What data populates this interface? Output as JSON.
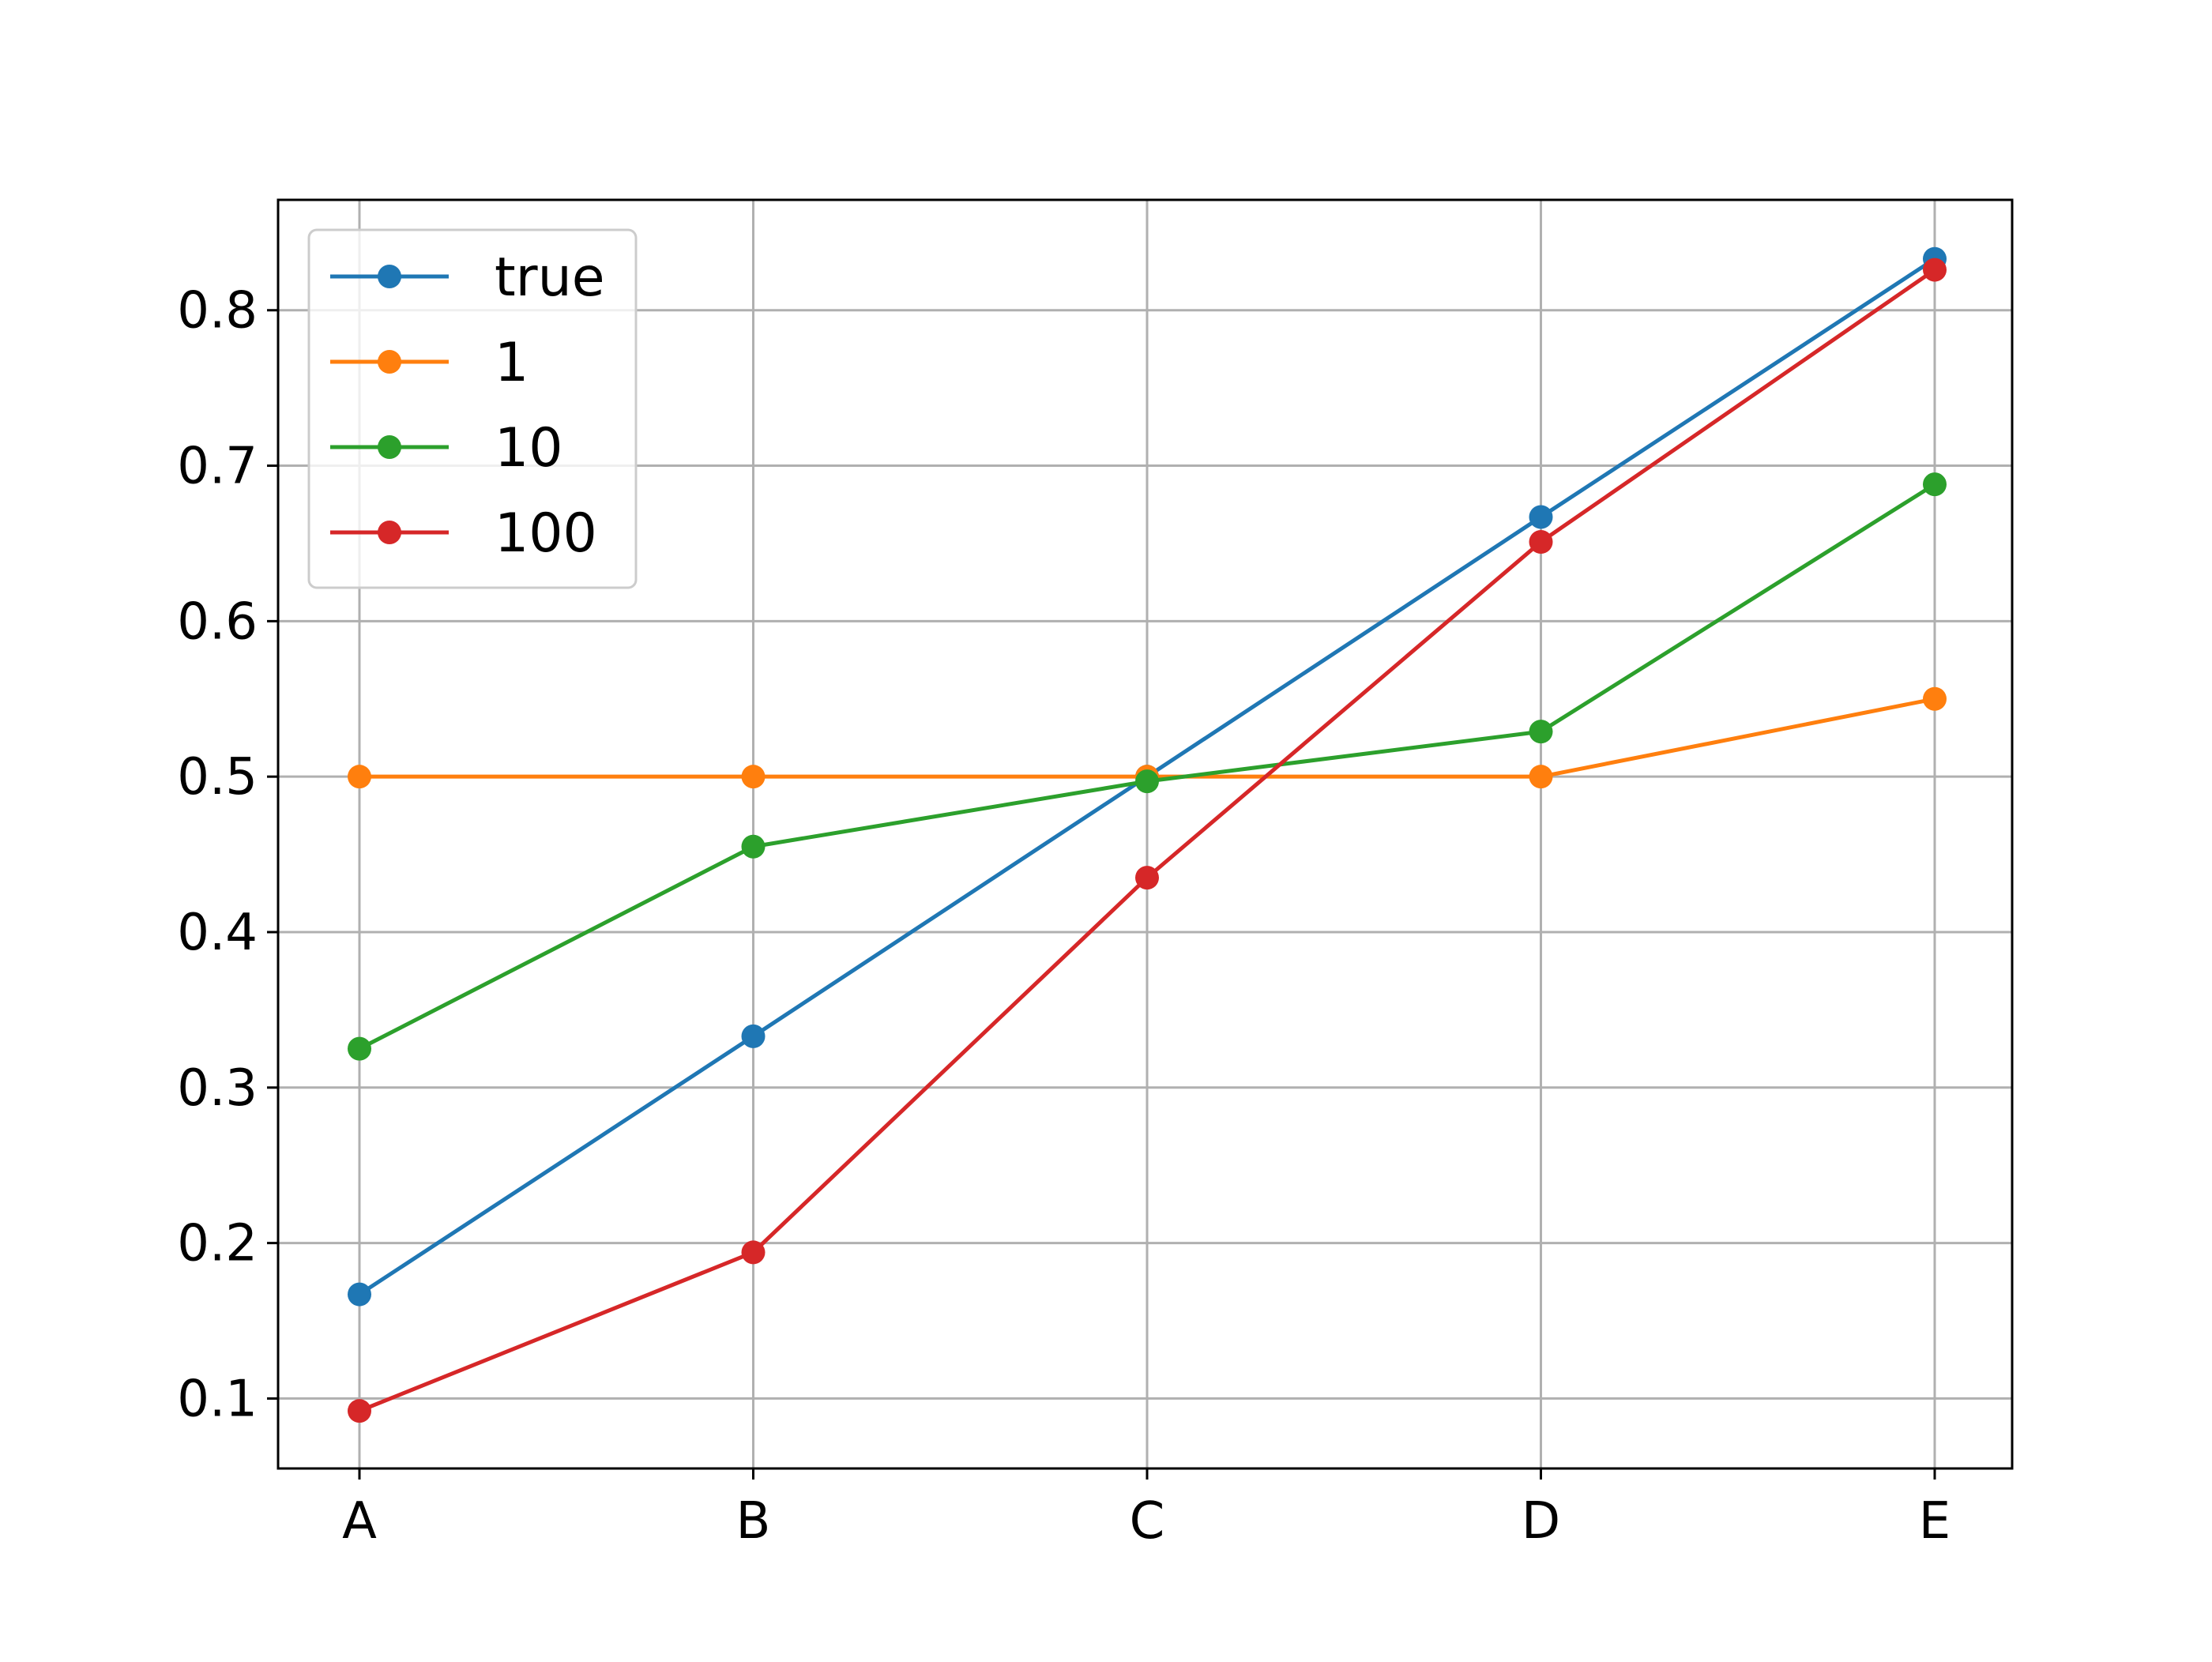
{
  "chart_data": {
    "type": "line",
    "categories": [
      "A",
      "B",
      "C",
      "D",
      "E"
    ],
    "series": [
      {
        "name": "true",
        "values": [
          0.167,
          0.333,
          0.5,
          0.667,
          0.833
        ],
        "color": "#1f77b4"
      },
      {
        "name": "1",
        "values": [
          0.5,
          0.5,
          0.5,
          0.5,
          0.55
        ],
        "color": "#ff7f0e"
      },
      {
        "name": "10",
        "values": [
          0.325,
          0.455,
          0.497,
          0.529,
          0.688
        ],
        "color": "#2ca02c"
      },
      {
        "name": "100",
        "values": [
          0.092,
          0.194,
          0.435,
          0.651,
          0.826
        ],
        "color": "#d62728"
      }
    ],
    "y_ticks": [
      "0.1",
      "0.2",
      "0.3",
      "0.4",
      "0.5",
      "0.6",
      "0.7",
      "0.8"
    ],
    "ylim": [
      0.055,
      0.871
    ],
    "grid": true,
    "legend_position": "upper-left",
    "marker": "circle"
  }
}
